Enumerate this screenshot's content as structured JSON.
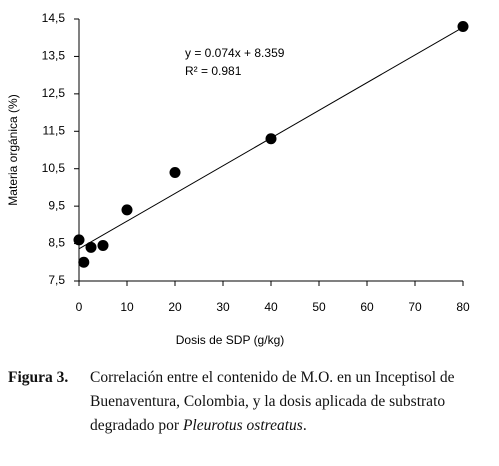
{
  "chart_data": {
    "type": "scatter",
    "x": [
      0,
      1,
      2.5,
      5,
      10,
      20,
      40,
      80
    ],
    "values": [
      8.6,
      8.0,
      8.4,
      8.45,
      9.4,
      10.4,
      11.3,
      14.3
    ],
    "color": "#000000",
    "xlabel": "Dosis de SDP (g/kg)",
    "ylabel": "Materia orgánica (%)",
    "xlim": [
      0,
      80
    ],
    "xticks": [
      0,
      10,
      20,
      30,
      40,
      50,
      60,
      70,
      80
    ],
    "ylim": [
      7.5,
      14.5
    ],
    "yticks": [
      {
        "value": 7.5,
        "label": "7,5"
      },
      {
        "value": 8.5,
        "label": "8,5"
      },
      {
        "value": 9.5,
        "label": "9,5"
      },
      {
        "value": 10.5,
        "label": "10,5"
      },
      {
        "value": 11.5,
        "label": "11,5"
      },
      {
        "value": 12.5,
        "label": "12,5"
      },
      {
        "value": 13.5,
        "label": "13,5"
      },
      {
        "value": 14.5,
        "label": "14,5"
      }
    ],
    "trendline": {
      "slope": 0.074,
      "intercept": 8.359
    },
    "annotations": [
      "y = 0.074x + 8.359",
      "R² = 0.981"
    ]
  },
  "caption": {
    "label": "Figura 3.",
    "text": "Correlación entre el contenido de M.O. en un Inceptisol de Buenaventura, Colombia, y la dosis aplicada de substrato degradado por",
    "species": "Pleurotus ostreatus",
    "end": "."
  }
}
